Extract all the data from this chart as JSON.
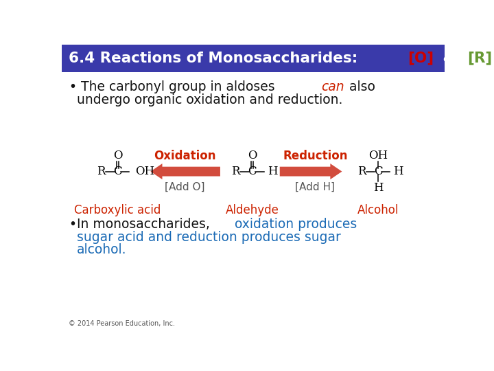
{
  "title_text": "6.4 Reactions of Monosaccharides: ",
  "title_O": "[O]",
  "title_amp": " & ",
  "title_R": "[R]",
  "title_bg": "#3a3aaa",
  "title_fg": "#ffffff",
  "title_O_color": "#cc0000",
  "title_R_color": "#669933",
  "blue_color": "#1a6ab5",
  "red_color": "#cc2200",
  "dark_red_color": "#aa1100",
  "black_color": "#111111",
  "gray_color": "#555555",
  "arrow_color": "#cc3322",
  "oxidation_label": "Oxidation",
  "reduction_label": "Reduction",
  "add_o_label": "[Add O]",
  "add_h_label": "[Add H]",
  "carboxylic_label": "Carboxylic acid",
  "aldehyde_label": "Aldehyde",
  "alcohol_label": "Alcohol",
  "copyright": "© 2014 Pearson Education, Inc.",
  "bg_color": "#ffffff"
}
